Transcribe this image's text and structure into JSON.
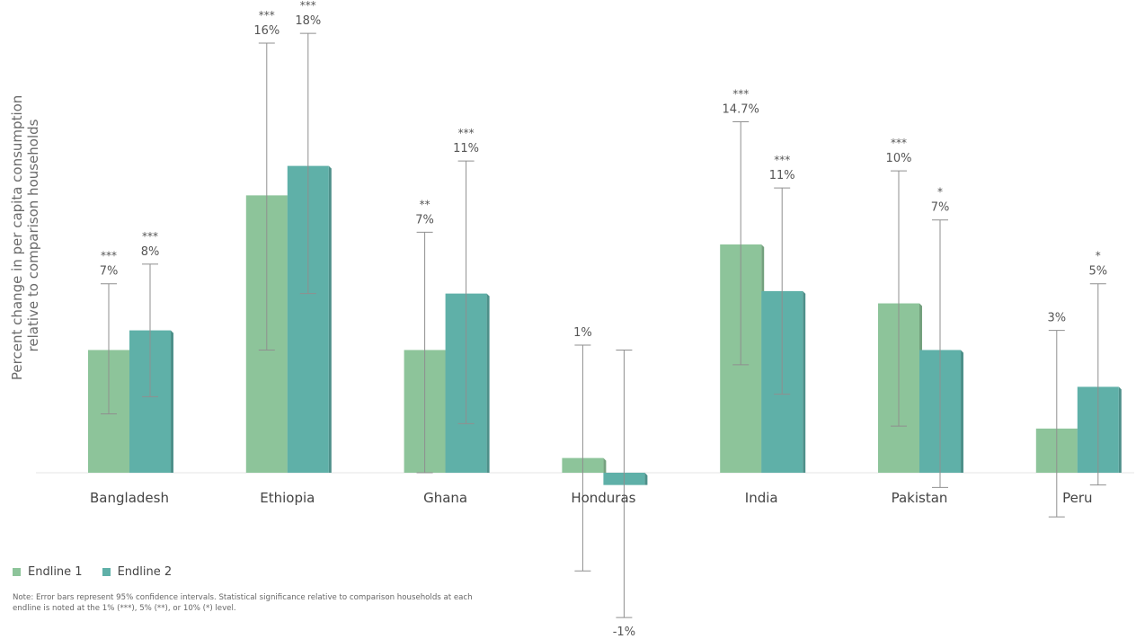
{
  "chart_data": {
    "type": "bar",
    "ylabel": "Percent change in per capita consumption relative to comparison households",
    "ylim": [
      -1.8,
      18.6
    ],
    "grid": false,
    "legend_position": "bottom-left",
    "categories": [
      "Bangladesh",
      "Ethiopia",
      "Ghana",
      "Honduras",
      "India",
      "Pakistan",
      "Peru"
    ],
    "series": [
      {
        "name": "Endline 1",
        "color": "#8dc49a",
        "values": [
          5.0,
          11.3,
          5.0,
          0.6,
          9.3,
          6.9,
          1.8
        ],
        "ci_low": [
          2.4,
          5.0,
          0.0,
          -4.0,
          4.4,
          1.9,
          -1.8
        ],
        "ci_high": [
          7.7,
          17.5,
          9.8,
          5.2,
          14.3,
          12.3,
          5.8
        ],
        "value_labels": [
          "7%",
          "16%",
          "7%",
          "1%",
          "14.7%",
          "10%",
          "3%"
        ],
        "significance": [
          "***",
          "***",
          "**",
          "",
          "***",
          "***",
          ""
        ]
      },
      {
        "name": "Endline 2",
        "color": "#5fb0a8",
        "values": [
          5.8,
          12.5,
          7.3,
          -0.5,
          7.4,
          5.0,
          3.5
        ],
        "ci_low": [
          3.1,
          7.3,
          2.0,
          -5.9,
          3.2,
          -0.6,
          -0.5
        ],
        "ci_high": [
          8.5,
          17.9,
          12.7,
          5.0,
          11.6,
          10.3,
          7.7
        ],
        "value_labels": [
          "8%",
          "18%",
          "11%",
          "-1%",
          "11%",
          "7%",
          "5%"
        ],
        "significance": [
          "***",
          "***",
          "***",
          "",
          "***",
          "*",
          "*"
        ]
      }
    ],
    "note": "Note: Error bars represent 95% confidence intervals. Statistical significance relative to comparison households at each endline is noted at the 1% (***), 5% (**), or 10% (*) level."
  }
}
